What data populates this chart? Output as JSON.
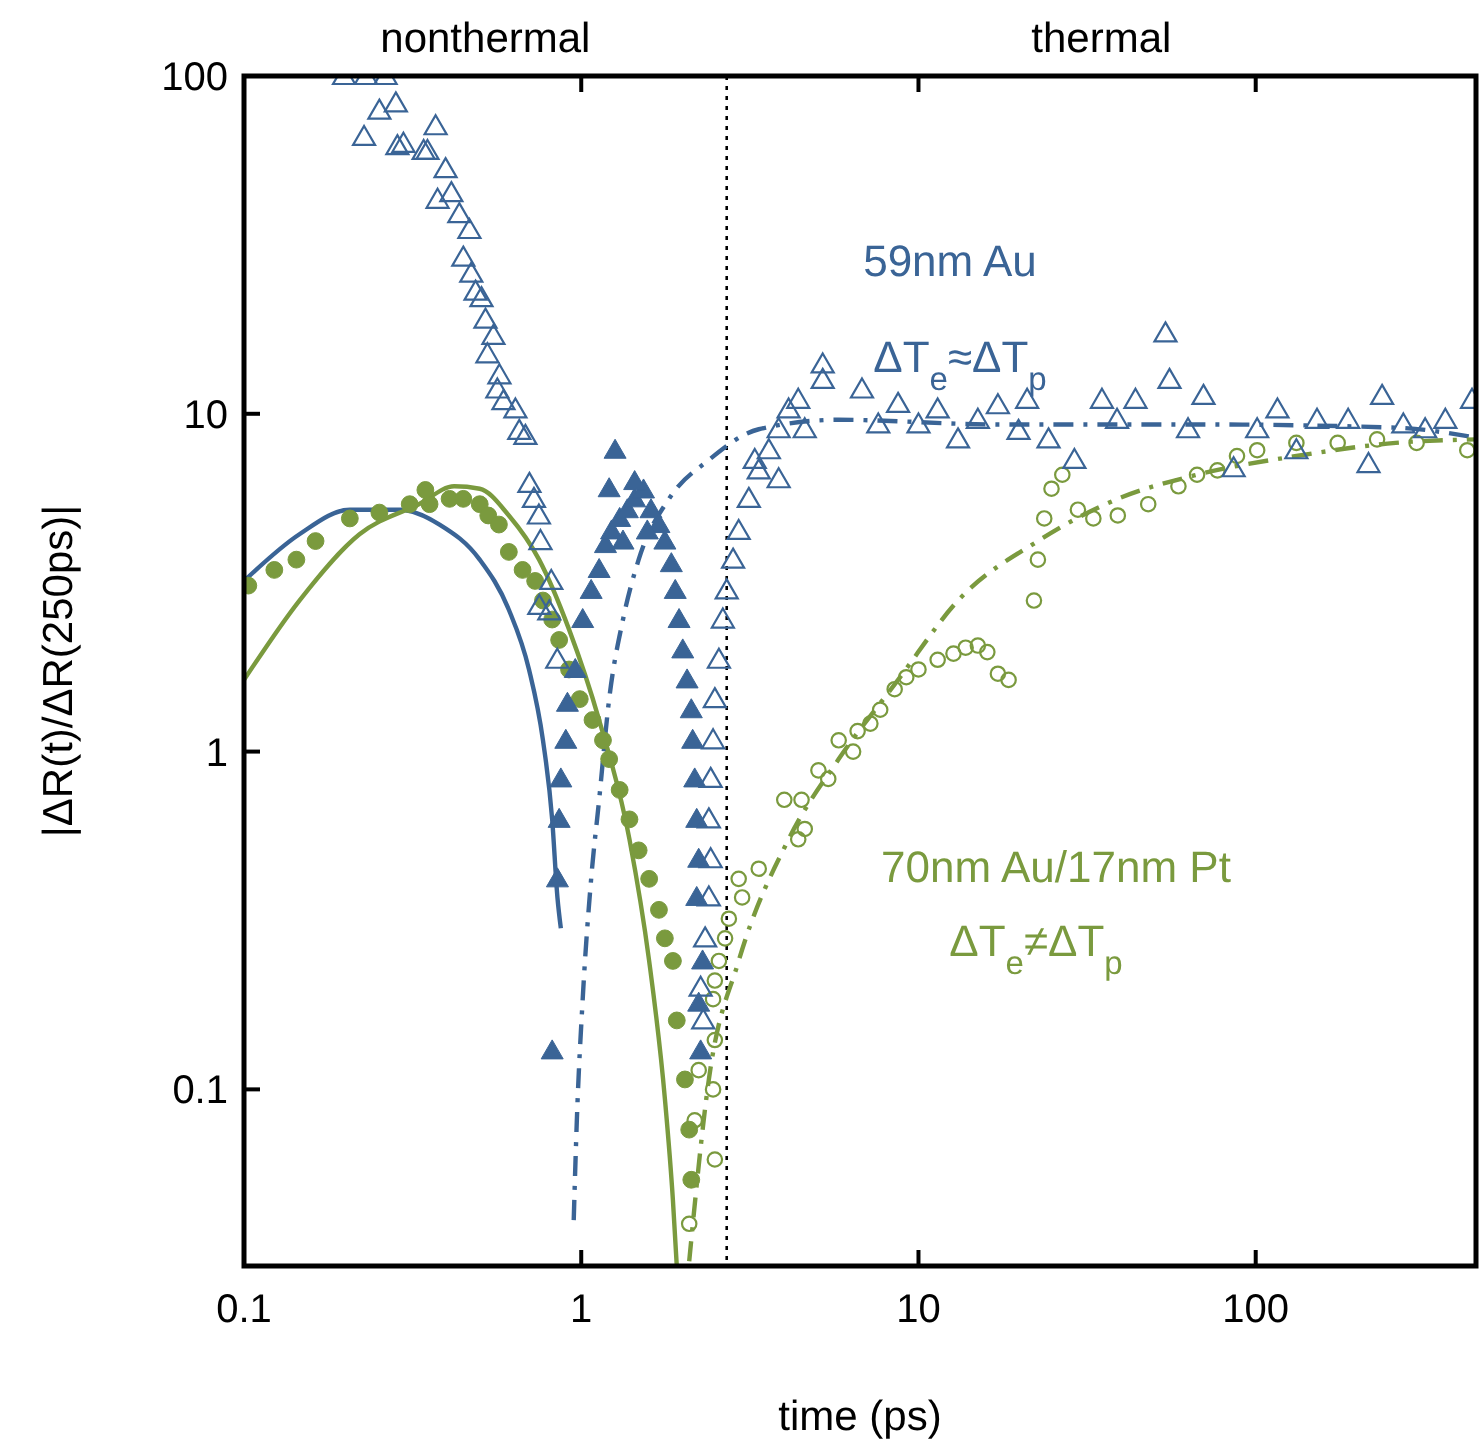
{
  "chart_data": {
    "type": "scatter",
    "xlabel": "time (ps)",
    "ylabel": "|ΔR(t)/ΔR(250ps)|",
    "log": "xy",
    "grid": false,
    "xlim": [
      0.1,
      450
    ],
    "xticks": [
      0.1,
      1,
      10,
      100
    ],
    "ylim": [
      0.03,
      100
    ],
    "yticks": [
      0.1,
      1,
      10,
      100
    ],
    "ref_lines": [
      {
        "axis": "x",
        "value": 2.7,
        "color": "#000000",
        "line_style": "dotted"
      }
    ],
    "annotations": [
      "nonthermal",
      "thermal",
      "59nm Au",
      "ΔT$_{e}$≈ΔT$_{p}$",
      "70nm Au/17nm Pt",
      "ΔT$_{e}$≠ΔT$_{p}$"
    ],
    "series": [
      {
        "marker": "triangle",
        "color": "#3a6496",
        "x": [
          0.198,
          0.23,
          0.263,
          0.227,
          0.252,
          0.282,
          0.285,
          0.297,
          0.341,
          0.37,
          0.35,
          0.396,
          0.412,
          0.375,
          0.435,
          0.466,
          0.447,
          0.472,
          0.486,
          0.506,
          0.52,
          0.549,
          0.527,
          0.572,
          0.564,
          0.588,
          0.638,
          0.655,
          0.683,
          0.702,
          0.724,
          0.749,
          0.757,
          0.815,
          0.751,
          0.804,
          0.849,
          2.3,
          2.26,
          2.33,
          2.39,
          2.42,
          2.39,
          2.42,
          2.46,
          2.49,
          2.56,
          2.63,
          2.7,
          2.82,
          2.93,
          3.14,
          3.36,
          3.6,
          3.85,
          4.12,
          4.4,
          5.2,
          5.2,
          3.27,
          3.85,
          4.6,
          6.8,
          7.6,
          8.7,
          10,
          11.4,
          13.1,
          15,
          17.2,
          19.8,
          21,
          24.3,
          29,
          35,
          38.8,
          44,
          54,
          55.5,
          63,
          70,
          86,
          101,
          116,
          132,
          152,
          188,
          216,
          237,
          274,
          318,
          365,
          438
        ],
        "values": [
          100,
          100,
          100,
          66,
          79,
          83,
          62,
          63,
          60,
          71,
          60,
          53,
          45,
          43,
          39,
          35,
          29,
          26,
          23,
          22,
          19,
          17,
          15,
          13,
          11.8,
          10.9,
          10.3,
          8.9,
          8.6,
          6.2,
          5.6,
          5.0,
          4.2,
          3.2,
          2.7,
          2.6,
          1.87,
          0.16,
          0.2,
          0.28,
          0.37,
          0.48,
          0.63,
          0.83,
          1.08,
          1.43,
          1.87,
          2.46,
          3.0,
          3.7,
          4.5,
          5.6,
          6.8,
          7.8,
          9,
          10.3,
          11,
          12.6,
          14,
          7.3,
          6.4,
          9.0,
          11.8,
          9.3,
          10.7,
          9.3,
          10.3,
          8.4,
          9.6,
          10.6,
          8.9,
          11.0,
          8.4,
          7.3,
          11,
          9.6,
          11,
          17.3,
          12.6,
          9,
          11.3,
          6.9,
          9,
          10.3,
          7.8,
          9.6,
          9.6,
          7.1,
          11.3,
          9.3,
          9,
          9.6,
          11
        ]
      },
      {
        "marker": "triangle",
        "color": "#3a6496",
        "x": [
          0.82,
          0.85,
          0.86,
          0.87,
          0.9,
          0.91,
          0.96,
          1.01,
          1.07,
          1.13,
          1.18,
          1.23,
          1.26,
          1.3,
          1.37,
          1.44,
          1.53,
          1.61,
          1.7,
          1.77,
          1.85,
          1.9,
          1.95,
          2.0,
          2.06,
          2.12,
          2.14,
          2.17,
          2.2,
          2.23,
          2.2,
          2.29,
          2.23,
          2.26,
          1.33,
          1.44,
          1.57,
          1.21
        ],
        "values": [
          0.13,
          0.42,
          0.63,
          0.83,
          1.08,
          1.39,
          1.75,
          2.46,
          3.0,
          3.46,
          4.1,
          4.5,
          7.8,
          4.9,
          5.2,
          5.6,
          5.95,
          5.2,
          4.7,
          4.2,
          3.6,
          3.0,
          2.46,
          2.0,
          1.63,
          1.33,
          1.08,
          0.83,
          0.63,
          0.48,
          0.37,
          0.24,
          0.18,
          0.13,
          4.2,
          6.3,
          4.5,
          6.0
        ]
      },
      {
        "type": "line",
        "line_style": "solid",
        "color": "#3a6496",
        "x": [
          0.1,
          0.146,
          0.206,
          0.29,
          0.38,
          0.5,
          0.61,
          0.7,
          0.77,
          0.82,
          0.85,
          0.87
        ],
        "values": [
          3.2,
          4.4,
          5.2,
          5.2,
          4.7,
          3.7,
          2.63,
          1.75,
          1.08,
          0.63,
          0.37,
          0.3
        ]
      },
      {
        "type": "line",
        "line_style": "dashdot",
        "color": "#3a6496",
        "x": [
          0.95,
          0.97,
          1.01,
          1.07,
          1.13,
          1.21,
          1.33,
          1.48,
          1.82,
          2.39,
          3.36,
          5.8,
          17.2,
          67,
          260,
          450
        ],
        "values": [
          0.041,
          0.08,
          0.185,
          0.42,
          0.72,
          1.43,
          2.46,
          3.7,
          5.6,
          7.3,
          9.0,
          9.6,
          9.3,
          9.3,
          9.1,
          8.5
        ]
      },
      {
        "marker": "circle",
        "color": "#7a9a3e",
        "x": [
          0.103,
          0.123,
          0.143,
          0.163,
          0.206,
          0.252,
          0.31,
          0.355,
          0.345,
          0.407,
          0.447,
          0.5,
          0.53,
          0.57,
          0.61,
          0.67,
          0.73,
          0.77,
          0.82,
          0.86,
          0.92,
          0.99,
          1.08,
          1.16,
          1.21,
          1.3,
          1.39,
          1.48,
          1.59,
          1.7,
          1.77,
          1.87,
          1.92,
          2.03,
          2.09,
          2.12
        ],
        "values": [
          3.1,
          3.45,
          3.7,
          4.2,
          4.9,
          5.1,
          5.4,
          5.4,
          5.95,
          5.6,
          5.6,
          5.4,
          5.0,
          4.7,
          3.9,
          3.45,
          3.2,
          2.8,
          2.46,
          2.14,
          1.75,
          1.43,
          1.24,
          1.08,
          0.95,
          0.77,
          0.63,
          0.51,
          0.42,
          0.34,
          0.28,
          0.24,
          0.16,
          0.107,
          0.076,
          0.054
        ]
      },
      {
        "type": "line",
        "line_style": "solid",
        "color": "#7a9a3e",
        "x": [
          0.1,
          0.146,
          0.22,
          0.33,
          0.42,
          0.5,
          0.61,
          0.75,
          0.92,
          1.13,
          1.39,
          1.59,
          1.77,
          1.87,
          1.92
        ],
        "values": [
          1.63,
          2.8,
          4.4,
          5.4,
          6.1,
          6.0,
          5.0,
          3.7,
          2.3,
          1.24,
          0.55,
          0.24,
          0.094,
          0.047,
          0.03
        ]
      },
      {
        "marker": "circle",
        "color": "#7a9a3e",
        "x": [
          2.09,
          2.49,
          2.17,
          2.46,
          2.23,
          2.49,
          2.46,
          2.49,
          2.56,
          2.67,
          2.74,
          3.0,
          2.93,
          3.36,
          4.0,
          4.4,
          4.6,
          4.5,
          5.05,
          5.4,
          5.8,
          6.4,
          6.6,
          7.2,
          7.7,
          8.5,
          9.2,
          10,
          11.4,
          12.7,
          13.8,
          15,
          16,
          17.2,
          18.5,
          22,
          22.6,
          23.6,
          24.8,
          26.7,
          29.7,
          33,
          39,
          48,
          59,
          67,
          77,
          88,
          101,
          132,
          175,
          229,
          300,
          424
        ],
        "values": [
          0.04,
          0.062,
          0.081,
          0.1,
          0.114,
          0.14,
          0.185,
          0.21,
          0.24,
          0.28,
          0.32,
          0.37,
          0.42,
          0.45,
          0.72,
          0.55,
          0.59,
          0.72,
          0.88,
          0.83,
          1.08,
          1.0,
          1.15,
          1.21,
          1.33,
          1.53,
          1.66,
          1.75,
          1.87,
          1.95,
          2.03,
          2.06,
          1.97,
          1.7,
          1.63,
          2.8,
          3.7,
          4.9,
          6.0,
          6.6,
          5.2,
          4.9,
          5.0,
          5.4,
          6.1,
          6.6,
          6.8,
          7.5,
          7.8,
          8.2,
          8.2,
          8.4,
          8.2,
          7.8
        ]
      },
      {
        "type": "line",
        "line_style": "dashdot",
        "color": "#7a9a3e",
        "x": [
          2.09,
          2.39,
          2.93,
          4.12,
          5.8,
          8.7,
          13.1,
          22.6,
          39,
          67,
          132,
          260,
          450
        ],
        "values": [
          0.031,
          0.107,
          0.24,
          0.55,
          0.95,
          1.63,
          2.8,
          4.2,
          5.6,
          6.6,
          7.5,
          8.2,
          8.4
        ]
      }
    ]
  }
}
